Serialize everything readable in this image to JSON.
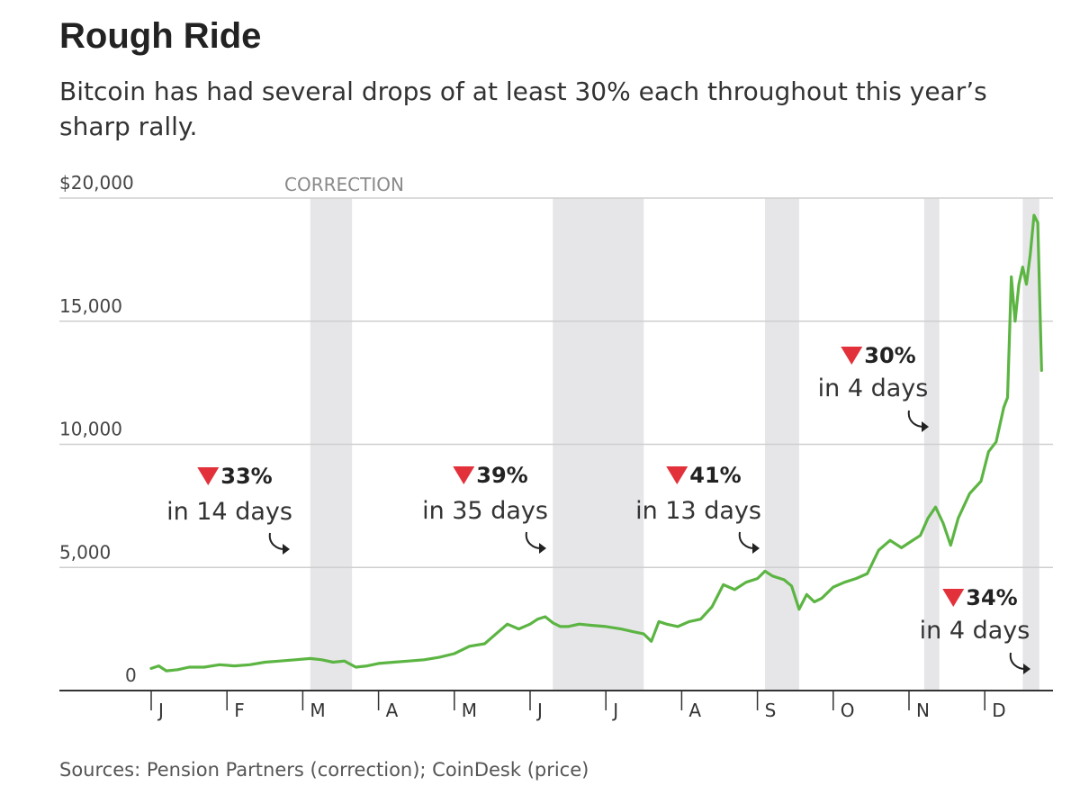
{
  "header": {
    "title": "Rough Ride",
    "subtitle": "Bitcoin has had several drops of at least 30% each throughout this year’s sharp rally."
  },
  "footer": {
    "source": "Sources: Pension Partners (correction); CoinDesk (price)"
  },
  "colors": {
    "line": "#5cb543",
    "band": "#e6e6e9",
    "arrow": "#e2313a",
    "grid": "#cfcfcf",
    "axis": "#333333"
  },
  "chart_data": {
    "type": "line",
    "title": "Rough Ride",
    "xlabel": "",
    "ylabel": "",
    "ylim": [
      0,
      20000
    ],
    "yticks": [
      {
        "value": 0,
        "label": "0"
      },
      {
        "value": 5000,
        "label": "5,000"
      },
      {
        "value": 10000,
        "label": "10,000"
      },
      {
        "value": 15000,
        "label": "15,000"
      },
      {
        "value": 20000,
        "label": "$20,000"
      }
    ],
    "xlim": [
      0,
      12
    ],
    "xticks": [
      "J",
      "F",
      "M",
      "A",
      "M",
      "J",
      "J",
      "A",
      "S",
      "O",
      "N",
      "D"
    ],
    "grid": true,
    "band_label": "CORRECTION",
    "corrections": [
      {
        "start": 2.1,
        "end": 2.65
      },
      {
        "start": 5.3,
        "end": 6.5
      },
      {
        "start": 8.1,
        "end": 8.55
      },
      {
        "start": 10.2,
        "end": 10.4
      },
      {
        "start": 11.5,
        "end": 11.72
      }
    ],
    "annotations": [
      {
        "pct": "33%",
        "days": "in 14 days",
        "target": 2.1
      },
      {
        "pct": "39%",
        "days": "in 35 days",
        "target": 5.3
      },
      {
        "pct": "41%",
        "days": "in 13 days",
        "target": 8.1
      },
      {
        "pct": "30%",
        "days": "in 4 days",
        "target": 10.2
      },
      {
        "pct": "34%",
        "days": "in 4 days",
        "target": 11.5
      }
    ],
    "series": [
      {
        "x": [
          0,
          0.1,
          0.2,
          0.35,
          0.5,
          0.7,
          0.9,
          1.1,
          1.3,
          1.5,
          1.7,
          1.9,
          2.1,
          2.25,
          2.4,
          2.55,
          2.7,
          2.85,
          3.0,
          3.2,
          3.4,
          3.6,
          3.8,
          4.0,
          4.2,
          4.4,
          4.55,
          4.7,
          4.85,
          5.0,
          5.1,
          5.2,
          5.3,
          5.4,
          5.5,
          5.65,
          5.8,
          6.0,
          6.2,
          6.35,
          6.5,
          6.6,
          6.7,
          6.8,
          6.95,
          7.1,
          7.25,
          7.4,
          7.55,
          7.7,
          7.85,
          8.0,
          8.1,
          8.2,
          8.35,
          8.45,
          8.55,
          8.65,
          8.75,
          8.85,
          9.0,
          9.15,
          9.3,
          9.45,
          9.6,
          9.75,
          9.9,
          10.0,
          10.15,
          10.25,
          10.35,
          10.45,
          10.55,
          10.65,
          10.8,
          10.95,
          11.05,
          11.15,
          11.25,
          11.3,
          11.35,
          11.4,
          11.45,
          11.5,
          11.55,
          11.6,
          11.65,
          11.7,
          11.75
        ],
        "values": [
          900,
          1000,
          800,
          850,
          950,
          950,
          1050,
          1000,
          1050,
          1150,
          1200,
          1250,
          1300,
          1250,
          1150,
          1200,
          950,
          1000,
          1100,
          1150,
          1200,
          1250,
          1350,
          1500,
          1800,
          1900,
          2300,
          2700,
          2500,
          2700,
          2900,
          3000,
          2750,
          2600,
          2600,
          2700,
          2650,
          2600,
          2500,
          2400,
          2300,
          2000,
          2800,
          2700,
          2600,
          2800,
          2900,
          3400,
          4300,
          4100,
          4400,
          4550,
          4850,
          4650,
          4500,
          4250,
          3300,
          3900,
          3600,
          3750,
          4200,
          4400,
          4550,
          4750,
          5700,
          6100,
          5800,
          6000,
          6300,
          7000,
          7450,
          6800,
          5900,
          7000,
          8000,
          8500,
          9700,
          10100,
          11500,
          11900,
          16800,
          15000,
          16500,
          17200,
          16500,
          17700,
          19300,
          19000,
          13000
        ]
      }
    ]
  }
}
